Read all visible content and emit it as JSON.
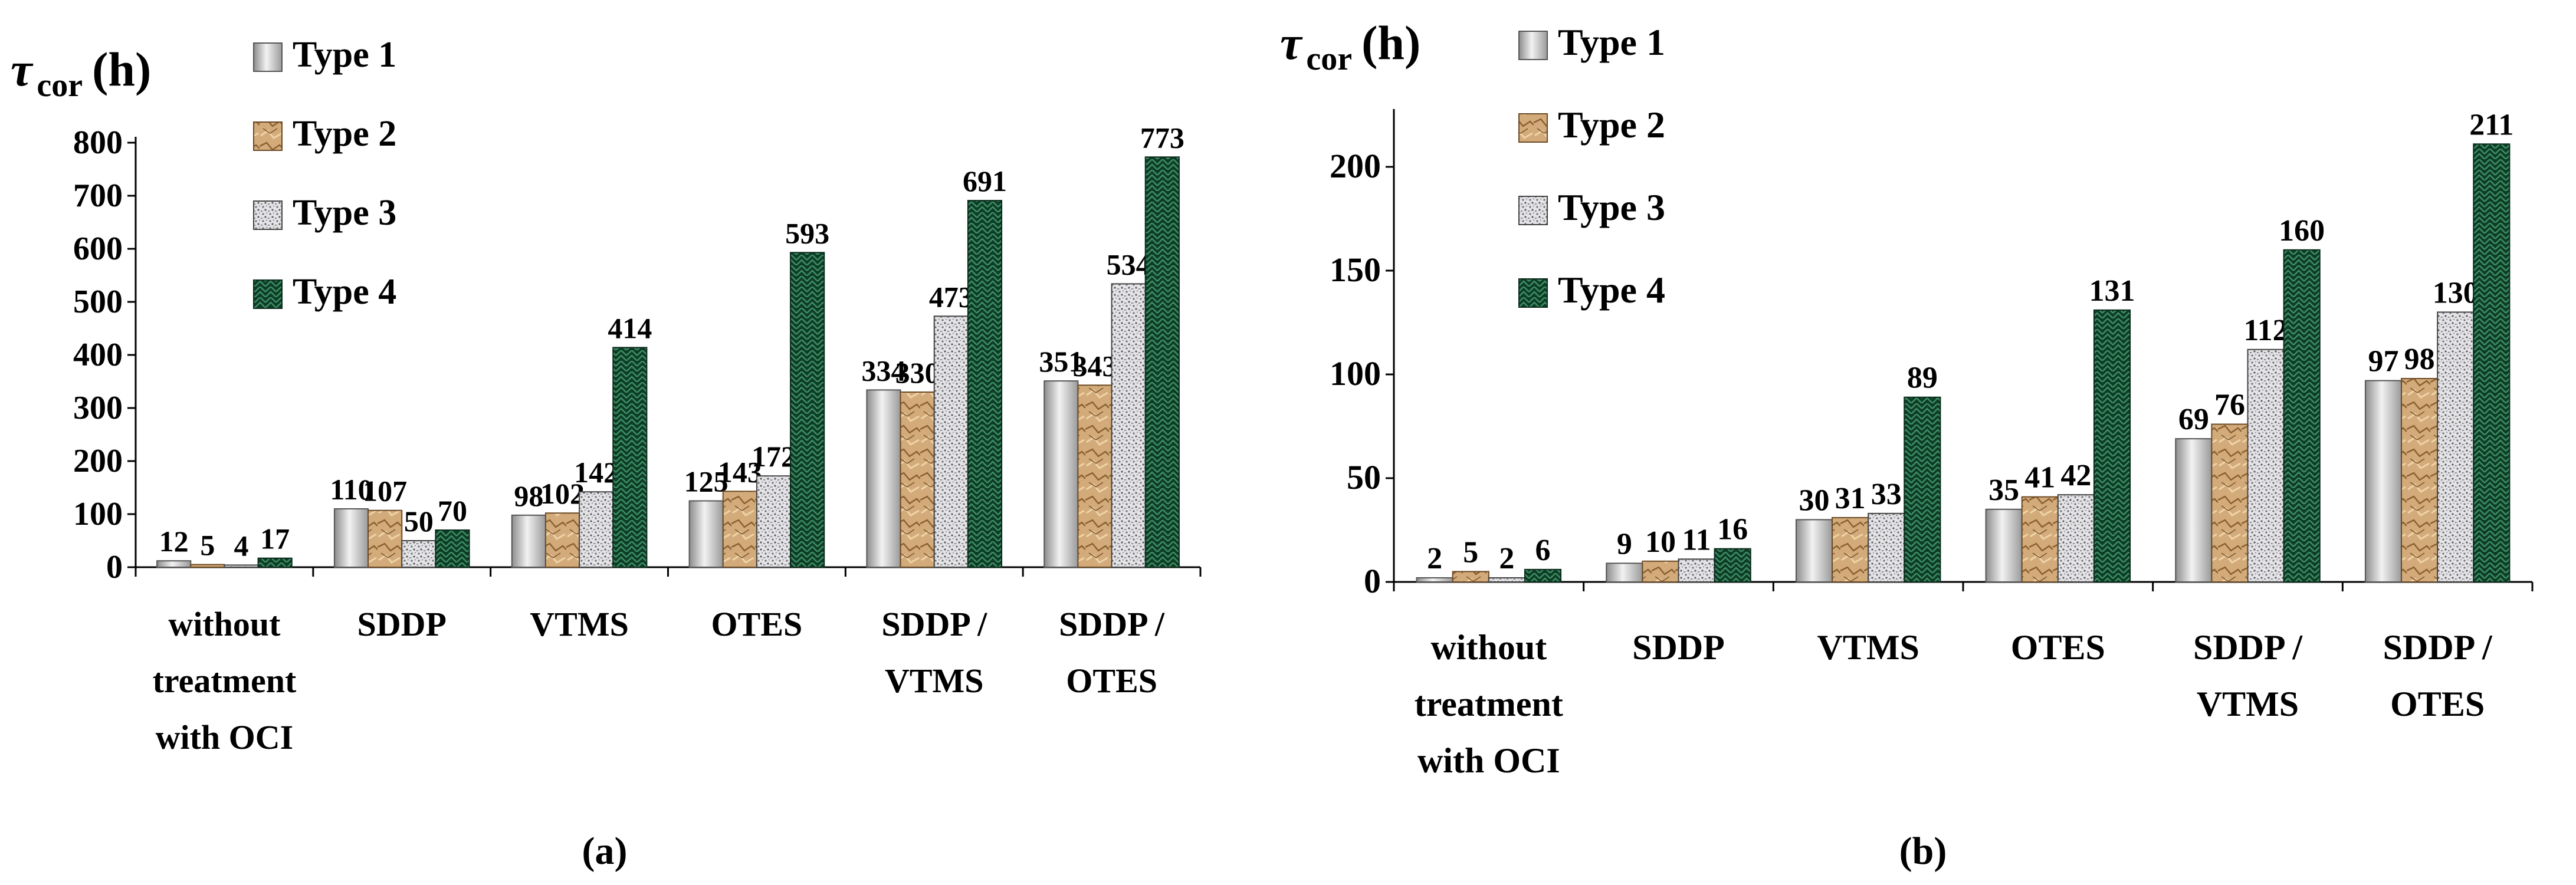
{
  "chart_data": [
    {
      "type": "bar",
      "panel_label": "(a)",
      "ylabel": "τ cor (h)",
      "ylim": [
        0,
        800
      ],
      "yticks": [
        0,
        100,
        200,
        300,
        400,
        500,
        600,
        700,
        800
      ],
      "categories": [
        "without treatment with OCI",
        "SDDP",
        "VTMS",
        "OTES",
        "SDDP / VTMS",
        "SDDP / OTES"
      ],
      "category_lines": [
        [
          "without",
          "treatment",
          "with OCI"
        ],
        [
          "SDDP"
        ],
        [
          "VTMS"
        ],
        [
          "OTES"
        ],
        [
          "SDDP /",
          "VTMS"
        ],
        [
          "SDDP /",
          "OTES"
        ]
      ],
      "series": [
        {
          "name": "Type 1",
          "values": [
            12,
            110,
            98,
            125,
            334,
            351
          ]
        },
        {
          "name": "Type 2",
          "values": [
            5,
            107,
            102,
            143,
            330,
            343
          ]
        },
        {
          "name": "Type 3",
          "values": [
            4,
            50,
            142,
            172,
            473,
            534
          ]
        },
        {
          "name": "Type 4",
          "values": [
            17,
            70,
            414,
            593,
            691,
            773
          ]
        }
      ],
      "legend_position": "top-left",
      "grid": false
    },
    {
      "type": "bar",
      "panel_label": "(b)",
      "ylabel": "τ cor (h)",
      "ylim": [
        0,
        225
      ],
      "yticks": [
        0,
        50,
        100,
        150,
        200
      ],
      "categories": [
        "without treatment with OCI",
        "SDDP",
        "VTMS",
        "OTES",
        "SDDP / VTMS",
        "SDDP / OTES"
      ],
      "category_lines": [
        [
          "without",
          "treatment",
          "with OCI"
        ],
        [
          "SDDP"
        ],
        [
          "VTMS"
        ],
        [
          "OTES"
        ],
        [
          "SDDP /",
          "VTMS"
        ],
        [
          "SDDP /",
          "OTES"
        ]
      ],
      "series": [
        {
          "name": "Type 1",
          "values": [
            2,
            9,
            30,
            35,
            69,
            97
          ]
        },
        {
          "name": "Type 2",
          "values": [
            5,
            10,
            31,
            41,
            76,
            98
          ]
        },
        {
          "name": "Type 3",
          "values": [
            2,
            11,
            33,
            42,
            112,
            130
          ]
        },
        {
          "name": "Type 4",
          "values": [
            6,
            16,
            89,
            131,
            160,
            211
          ]
        }
      ],
      "legend_position": "top-left",
      "grid": false
    }
  ],
  "series_style": {
    "Type 1": {
      "fill": "url(#gradType1)",
      "stroke": "#555555"
    },
    "Type 2": {
      "fill": "url(#patType2)",
      "stroke": "#6b4a25"
    },
    "Type 3": {
      "fill": "url(#patType3)",
      "stroke": "#444444"
    },
    "Type 4": {
      "fill": "url(#patType4)",
      "stroke": "#0b2a1b"
    }
  },
  "ylabel_parts": {
    "symbol": "τ",
    "subscript": "cor",
    "unit": "(h)"
  }
}
